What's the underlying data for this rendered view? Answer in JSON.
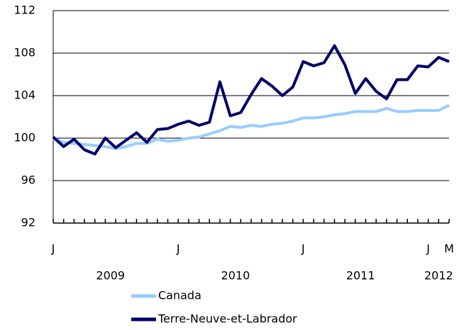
{
  "chart_data": {
    "type": "line",
    "categories": [
      "J",
      null,
      null,
      null,
      null,
      null,
      null,
      null,
      null,
      null,
      null,
      null,
      "J",
      null,
      null,
      null,
      null,
      null,
      null,
      null,
      null,
      null,
      null,
      null,
      "J",
      null,
      null,
      null,
      null,
      null,
      null,
      null,
      null,
      null,
      null,
      null,
      "J",
      null,
      "M"
    ],
    "year_labels": [
      "2009",
      "2010",
      "2011",
      "2012"
    ],
    "series": [
      {
        "name": "Canada",
        "color": "#99ccff",
        "values": [
          100.0,
          99.6,
          99.5,
          99.4,
          99.3,
          99.2,
          99.0,
          99.2,
          99.5,
          99.5,
          99.9,
          99.7,
          99.8,
          100.0,
          100.1,
          100.4,
          100.7,
          101.1,
          101.0,
          101.2,
          101.1,
          101.3,
          101.4,
          101.6,
          101.9,
          101.9,
          102.0,
          102.2,
          102.3,
          102.5,
          102.5,
          102.5,
          102.8,
          102.5,
          102.5,
          102.6,
          102.6,
          102.6,
          103.1
        ]
      },
      {
        "name": "Terre-Neuve-et-Labrador",
        "color": "#000066",
        "values": [
          100.1,
          99.2,
          99.9,
          98.9,
          98.5,
          100.0,
          99.1,
          99.8,
          100.5,
          99.6,
          100.8,
          100.9,
          101.3,
          101.6,
          101.2,
          101.5,
          105.3,
          102.1,
          102.4,
          104.1,
          105.6,
          104.9,
          104.0,
          104.8,
          107.2,
          106.8,
          107.1,
          108.7,
          106.9,
          104.2,
          105.6,
          104.4,
          103.7,
          105.5,
          105.5,
          106.8,
          106.7,
          107.6,
          107.2
        ]
      }
    ],
    "ylim": [
      92,
      112
    ],
    "yticks": [
      92,
      96,
      100,
      104,
      108,
      112
    ],
    "grid": true
  }
}
